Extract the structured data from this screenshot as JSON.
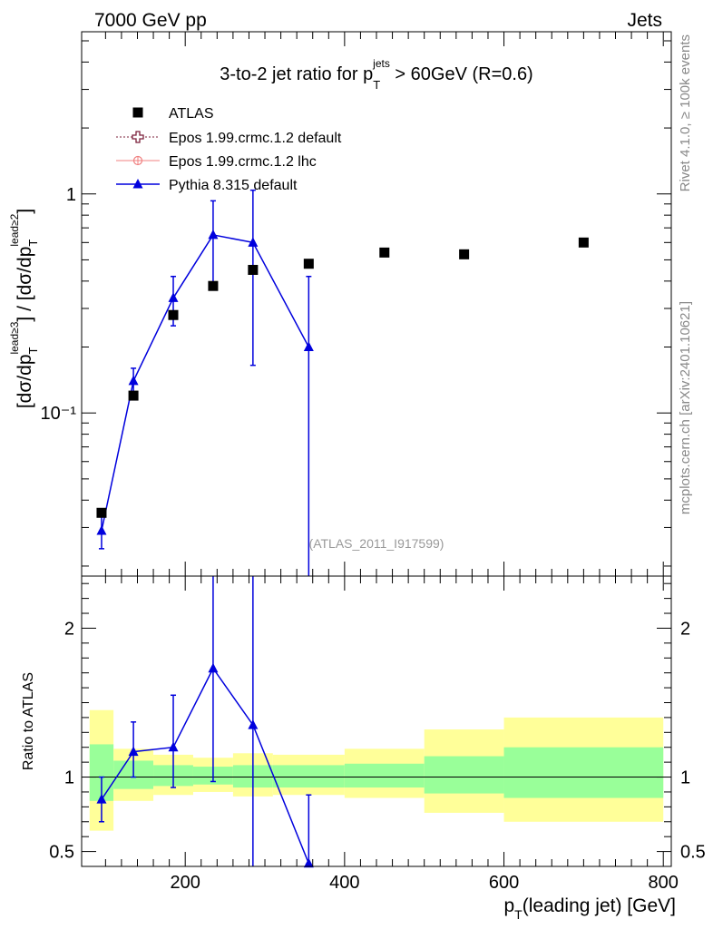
{
  "header": {
    "left": "7000 GeV pp",
    "right": "Jets"
  },
  "side_labels": {
    "rivet": "Rivet 4.1.0, ≥ 100k events",
    "mcplots": "mcplots.cern.ch [arXiv:2401.10621]"
  },
  "chart_data": [
    {
      "type": "scatter",
      "panel": "main",
      "title": "3-to-2 jet ratio for p_T^jets > 60GeV (R=0.6)",
      "watermark": "(ATLAS_2011_I917599)",
      "ylabel": "[dσ/dp_T^lead≥3] / [dσ/dp_T^lead≥2]",
      "yscale": "log",
      "ylim": [
        0.018,
        5.5
      ],
      "xlim": [
        70,
        810
      ],
      "yticks": [
        {
          "value": 1,
          "label": "1"
        },
        {
          "value": 0.1,
          "label": "10⁻¹"
        }
      ],
      "legend": [
        {
          "label": "ATLAS",
          "color": "#000000",
          "marker": "square"
        },
        {
          "label": "Epos 1.99.crmc.1.2 default",
          "color": "#7b1f3a",
          "marker": "open-cross"
        },
        {
          "label": "Epos 1.99.crmc.1.2 lhc",
          "color": "#f08080",
          "marker": "circle-cross"
        },
        {
          "label": "Pythia 8.315 default",
          "color": "#0000dd",
          "marker": "triangle"
        }
      ],
      "series": [
        {
          "name": "ATLAS",
          "x": [
            95,
            135,
            185,
            235,
            285,
            355,
            450,
            550,
            700
          ],
          "y": [
            0.035,
            0.12,
            0.28,
            0.38,
            0.45,
            0.48,
            0.54,
            0.53,
            0.6
          ]
        },
        {
          "name": "Pythia 8.315 default",
          "x": [
            95,
            135,
            185,
            235,
            285,
            355
          ],
          "y": [
            0.029,
            0.14,
            0.335,
            0.65,
            0.6,
            0.2
          ],
          "y_low": [
            0.024,
            0.12,
            0.25,
            0.37,
            0.165,
            0.001
          ],
          "y_high": [
            0.035,
            0.16,
            0.42,
            0.93,
            1.04,
            0.42
          ]
        }
      ]
    },
    {
      "type": "scatter",
      "panel": "ratio",
      "ylabel": "Ratio to ATLAS",
      "xlabel": "p_T(leading jet) [GeV]",
      "ylim": [
        0.4,
        2.35
      ],
      "xlim": [
        70,
        810
      ],
      "yticks": [
        {
          "value": 0.5,
          "label": "0.5"
        },
        {
          "value": 1,
          "label": "1"
        },
        {
          "value": 2,
          "label": "2"
        }
      ],
      "xticks": [
        {
          "value": 200,
          "label": "200"
        },
        {
          "value": 400,
          "label": "400"
        },
        {
          "value": 600,
          "label": "600"
        },
        {
          "value": 800,
          "label": "800"
        }
      ],
      "bands": [
        {
          "x0": 80,
          "x1": 110,
          "stat": [
            0.84,
            1.22
          ],
          "total": [
            0.64,
            1.45
          ]
        },
        {
          "x0": 110,
          "x1": 160,
          "stat": [
            0.92,
            1.11
          ],
          "total": [
            0.84,
            1.19
          ]
        },
        {
          "x0": 160,
          "x1": 210,
          "stat": [
            0.94,
            1.08
          ],
          "total": [
            0.88,
            1.15
          ]
        },
        {
          "x0": 210,
          "x1": 260,
          "stat": [
            0.95,
            1.07
          ],
          "total": [
            0.9,
            1.13
          ]
        },
        {
          "x0": 260,
          "x1": 310,
          "stat": [
            0.93,
            1.08
          ],
          "total": [
            0.87,
            1.16
          ]
        },
        {
          "x0": 310,
          "x1": 400,
          "stat": [
            0.93,
            1.08
          ],
          "total": [
            0.88,
            1.15
          ]
        },
        {
          "x0": 400,
          "x1": 500,
          "stat": [
            0.93,
            1.09
          ],
          "total": [
            0.86,
            1.19
          ]
        },
        {
          "x0": 500,
          "x1": 600,
          "stat": [
            0.89,
            1.14
          ],
          "total": [
            0.76,
            1.32
          ]
        },
        {
          "x0": 600,
          "x1": 800,
          "stat": [
            0.86,
            1.2
          ],
          "total": [
            0.7,
            1.4
          ]
        }
      ],
      "series": [
        {
          "name": "Pythia 8.315 default",
          "x": [
            95,
            135,
            185,
            235,
            285,
            355
          ],
          "y": [
            0.85,
            1.17,
            1.2,
            1.73,
            1.35,
            0.42
          ],
          "y_low": [
            0.7,
            1.0,
            0.93,
            0.97,
            0.37,
            0.001
          ],
          "y_high": [
            1.0,
            1.37,
            1.55,
            2.49,
            2.37,
            0.88
          ]
        }
      ]
    }
  ]
}
